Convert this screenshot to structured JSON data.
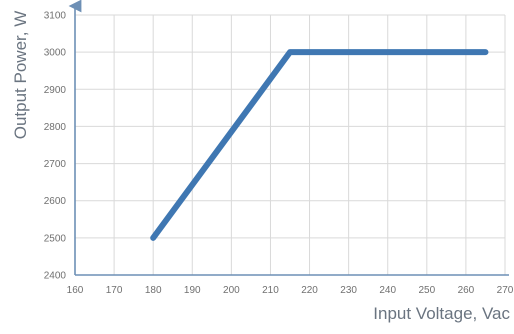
{
  "chart_data": {
    "type": "line",
    "xlabel": "Input Voltage, Vac",
    "ylabel": "Output Power, W",
    "xlim": [
      160,
      270
    ],
    "ylim": [
      2400,
      3100
    ],
    "x_ticks": [
      "160",
      "170",
      "180",
      "190",
      "200",
      "210",
      "220",
      "230",
      "240",
      "250",
      "260",
      "270"
    ],
    "y_ticks": [
      "2400",
      "2500",
      "2600",
      "2700",
      "2800",
      "2900",
      "3000",
      "3100"
    ],
    "grid": true,
    "series": [
      {
        "x": [
          180,
          215,
          265
        ],
        "y": [
          2500,
          3000,
          3000
        ]
      }
    ],
    "colors": {
      "line": "#3f77b2",
      "axis": "#6d8fb5",
      "grid": "#d9d9d9"
    }
  }
}
